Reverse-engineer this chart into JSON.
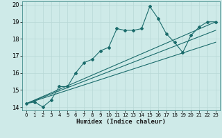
{
  "xlabel": "Humidex (Indice chaleur)",
  "ylabel": "",
  "bg_color": "#ceeae8",
  "grid_color": "#b8d8d6",
  "line_color": "#1a6b6b",
  "xlim": [
    -0.5,
    23.5
  ],
  "ylim": [
    13.8,
    20.2
  ],
  "xticks": [
    0,
    1,
    2,
    3,
    4,
    5,
    6,
    7,
    8,
    9,
    10,
    11,
    12,
    13,
    14,
    15,
    16,
    17,
    18,
    19,
    20,
    21,
    22,
    23
  ],
  "yticks": [
    14,
    15,
    16,
    17,
    18,
    19,
    20
  ],
  "series1_x": [
    0,
    1,
    2,
    3,
    4,
    5,
    6,
    7,
    8,
    9,
    10,
    11,
    12,
    13,
    14,
    15,
    16,
    17,
    18,
    19,
    20,
    21,
    22,
    23
  ],
  "series1_y": [
    14.2,
    14.3,
    14.0,
    14.4,
    15.2,
    15.2,
    16.0,
    16.6,
    16.8,
    17.3,
    17.5,
    18.6,
    18.5,
    18.5,
    18.6,
    19.9,
    19.2,
    18.3,
    17.8,
    17.2,
    18.2,
    18.7,
    19.0,
    19.0
  ],
  "line1_x": [
    0,
    23
  ],
  "line1_y": [
    14.2,
    19.0
  ],
  "line2_x": [
    0,
    23
  ],
  "line2_y": [
    14.2,
    18.5
  ],
  "line3_x": [
    0,
    23
  ],
  "line3_y": [
    14.2,
    17.8
  ]
}
